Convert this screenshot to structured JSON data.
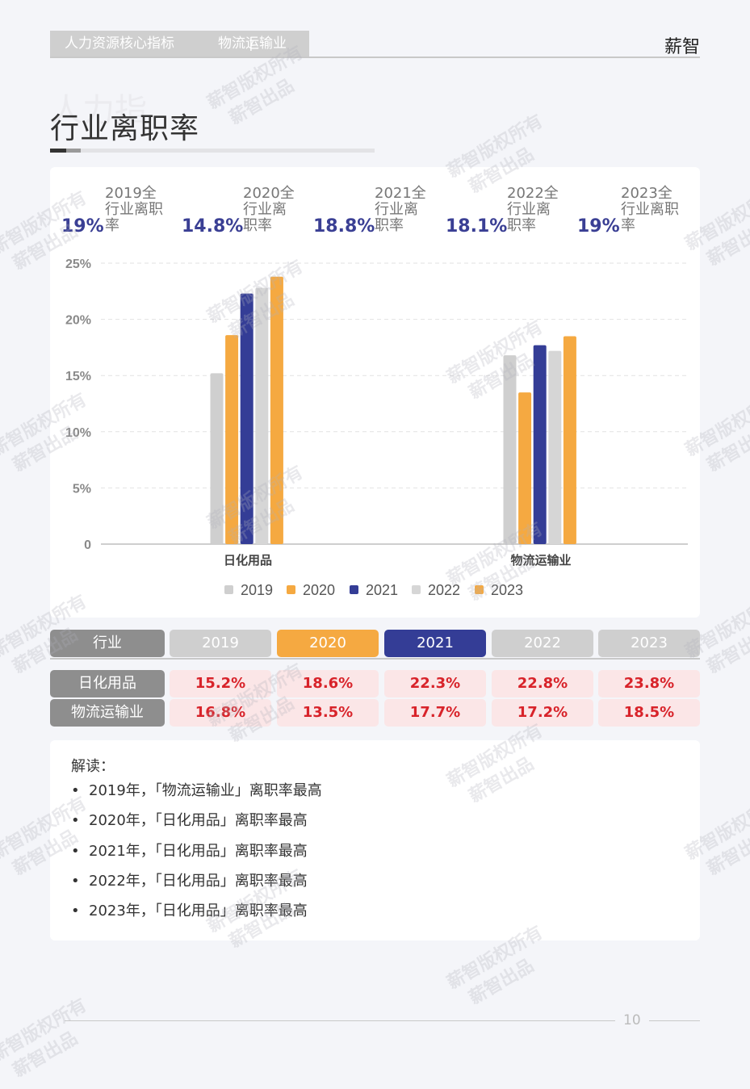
{
  "header": {
    "section": "人力资源核心指标",
    "divider": "|",
    "industry": "物流运输业",
    "brand": "薪智"
  },
  "page_title": "行业离职率",
  "title_ghost": "人力指",
  "kpis": [
    {
      "value": "19%",
      "label": "2019全行业离职率"
    },
    {
      "value": "14.8%",
      "label": "2020全行业离职率"
    },
    {
      "value": "18.8%",
      "label": "2021全行业离职率"
    },
    {
      "value": "18.1%",
      "label": "2022全行业离职率"
    },
    {
      "value": "19%",
      "label": "2023全行业离职率"
    }
  ],
  "chart_data": {
    "type": "bar",
    "categories": [
      "日化用品",
      "物流运输业"
    ],
    "series": [
      {
        "name": "2019",
        "values": [
          15.2,
          16.8
        ],
        "color": "#cfcfcf"
      },
      {
        "name": "2020",
        "values": [
          18.6,
          13.5
        ],
        "color": "#f5a941"
      },
      {
        "name": "2021",
        "values": [
          22.3,
          17.7
        ],
        "color": "#343d96"
      },
      {
        "name": "2022",
        "values": [
          22.8,
          17.2
        ],
        "color": "#d6d6d6"
      },
      {
        "name": "2023",
        "values": [
          23.8,
          18.5
        ],
        "color": "#f5a941"
      }
    ],
    "yticks": [
      "0",
      "5%",
      "10%",
      "15%",
      "20%",
      "25%"
    ],
    "ylim": [
      0,
      25
    ],
    "grid": true,
    "legend": "bottom"
  },
  "table": {
    "header_label": "行业",
    "years": [
      {
        "label": "2019",
        "color": "#cfcfcf"
      },
      {
        "label": "2020",
        "color": "#f5a941"
      },
      {
        "label": "2021",
        "color": "#343d96"
      },
      {
        "label": "2022",
        "color": "#cfcfcf"
      },
      {
        "label": "2023",
        "color": "#cfcfcf"
      }
    ],
    "rows": [
      {
        "industry": "日化用品",
        "values": [
          "15.2%",
          "18.6%",
          "22.3%",
          "22.8%",
          "23.8%"
        ]
      },
      {
        "industry": "物流运输业",
        "values": [
          "16.8%",
          "13.5%",
          "17.7%",
          "17.2%",
          "18.5%"
        ]
      }
    ]
  },
  "notes": {
    "title": "解读：",
    "items": [
      "2019年，「物流运输业」离职率最高",
      "2020年，「日化用品」离职率最高",
      "2021年，「日化用品」离职率最高",
      "2022年，「日化用品」离职率最高",
      "2023年，「日化用品」离职率最高"
    ]
  },
  "page_number": "10",
  "watermark": {
    "line1": "薪智版权所有",
    "line2": "薪智出品"
  }
}
